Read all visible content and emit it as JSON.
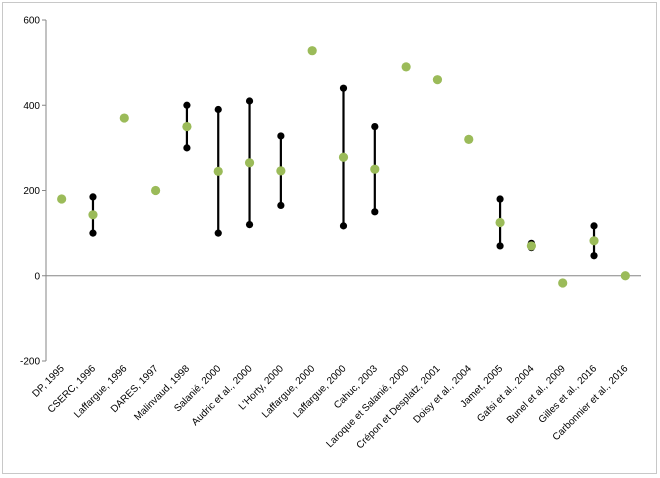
{
  "chart_data": {
    "type": "scatter",
    "title": "",
    "xlabel": "",
    "ylabel": "",
    "ylim": [
      -200,
      600
    ],
    "yticks": [
      -200,
      0,
      200,
      400,
      600
    ],
    "grid": false,
    "legend": "none",
    "colors": {
      "point": "#9bbb59",
      "range": "#000000",
      "axis": "#868686"
    },
    "categories": [
      "DP, 1995",
      "CSERC, 1996",
      "Laffargue, 1996",
      "DARES, 1997",
      "Malinvaud, 1998",
      "Salanié, 2000",
      "Audric et al., 2000",
      "L'Horty, 2000",
      "Laffargue, 2000",
      "Laffargue, 2000",
      "Cahuc, 2003",
      "Laroque et Salanié, 2000",
      "Crépon et Desplatz, 2001",
      "Doisy et al., 2004",
      "Jamet, 2005",
      "Gafsi et al., 2004",
      "Bunel et al., 2009",
      "Gilles et al., 2016",
      "Carbonnier et al., 2016"
    ],
    "values": [
      180,
      143,
      370,
      200,
      350,
      245,
      265,
      246,
      528,
      278,
      250,
      490,
      460,
      320,
      125,
      70,
      -17,
      82,
      0
    ],
    "low": [
      null,
      100,
      null,
      null,
      300,
      100,
      120,
      165,
      null,
      117,
      150,
      null,
      null,
      null,
      70,
      66,
      null,
      47,
      null
    ],
    "high": [
      null,
      185,
      null,
      null,
      400,
      390,
      410,
      328,
      null,
      440,
      350,
      null,
      null,
      null,
      180,
      76,
      null,
      117,
      null
    ]
  }
}
